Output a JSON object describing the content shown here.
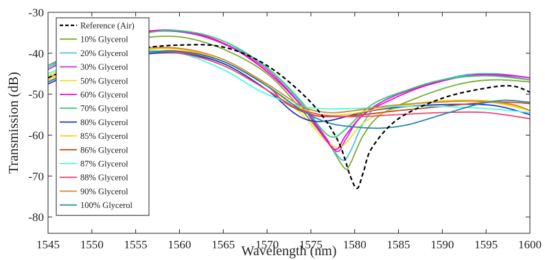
{
  "chart_data": {
    "type": "line",
    "title": "",
    "xlabel": "Wavelength (nm)",
    "ylabel": "Transmission (dB)",
    "xlim": [
      1545,
      1600
    ],
    "ylim": [
      -84,
      -30
    ],
    "xticks": [
      1545,
      1550,
      1555,
      1560,
      1565,
      1570,
      1575,
      1580,
      1585,
      1590,
      1595,
      1600
    ],
    "yticks": [
      -30,
      -40,
      -50,
      -60,
      -70,
      -80
    ],
    "grid": false,
    "legend_position": "top-left",
    "series": [
      {
        "name": "Reference (Air)",
        "color": "#000000",
        "dashed": true,
        "points": [
          [
            1545,
            -46
          ],
          [
            1550,
            -41.5
          ],
          [
            1555,
            -39
          ],
          [
            1560,
            -38
          ],
          [
            1565,
            -38.5
          ],
          [
            1570,
            -43
          ],
          [
            1575,
            -52
          ],
          [
            1578,
            -61
          ],
          [
            1579.5,
            -70
          ],
          [
            1580.3,
            -73
          ],
          [
            1581,
            -69
          ],
          [
            1582,
            -63
          ],
          [
            1585,
            -56
          ],
          [
            1590,
            -51
          ],
          [
            1595,
            -48.5
          ],
          [
            1598,
            -48
          ],
          [
            1600,
            -49.5
          ]
        ]
      },
      {
        "name": "10% Glycerol",
        "color": "#77AC30",
        "points": [
          [
            1545,
            -43
          ],
          [
            1550,
            -39
          ],
          [
            1555,
            -36.5
          ],
          [
            1560,
            -36
          ],
          [
            1565,
            -39
          ],
          [
            1570,
            -45
          ],
          [
            1574,
            -54
          ],
          [
            1577,
            -62
          ],
          [
            1578.8,
            -68
          ],
          [
            1579.5,
            -67
          ],
          [
            1581,
            -60
          ],
          [
            1583,
            -55
          ],
          [
            1587,
            -51
          ],
          [
            1592,
            -47.5
          ],
          [
            1596,
            -46.5
          ],
          [
            1600,
            -47
          ]
        ]
      },
      {
        "name": "20% Glycerol",
        "color": "#4DBEEE",
        "points": [
          [
            1545,
            -43.5
          ],
          [
            1550,
            -38.5
          ],
          [
            1555,
            -35.2
          ],
          [
            1560,
            -34.8
          ],
          [
            1565,
            -37.5
          ],
          [
            1570,
            -43.5
          ],
          [
            1574,
            -52.5
          ],
          [
            1576.5,
            -60
          ],
          [
            1578.5,
            -66
          ],
          [
            1579.5,
            -64
          ],
          [
            1581,
            -57
          ],
          [
            1583,
            -52
          ],
          [
            1587,
            -48.5
          ],
          [
            1592,
            -45.5
          ],
          [
            1596,
            -45
          ],
          [
            1600,
            -46
          ]
        ]
      },
      {
        "name": "30% Glycerol",
        "color": "#CC33CC",
        "points": [
          [
            1545,
            -44
          ],
          [
            1550,
            -38.5
          ],
          [
            1555,
            -35.2
          ],
          [
            1560,
            -34.7
          ],
          [
            1565,
            -37.7
          ],
          [
            1570,
            -44
          ],
          [
            1574,
            -53
          ],
          [
            1576.5,
            -60
          ],
          [
            1578,
            -64
          ],
          [
            1579,
            -61
          ],
          [
            1580.5,
            -56
          ],
          [
            1583,
            -52
          ],
          [
            1587,
            -48.5
          ],
          [
            1592,
            -45.8
          ],
          [
            1596,
            -45.3
          ],
          [
            1600,
            -46.5
          ]
        ]
      },
      {
        "name": "50% Glycerol",
        "color": "#E6E633",
        "points": [
          [
            1545,
            -45.5
          ],
          [
            1550,
            -41
          ],
          [
            1555,
            -39
          ],
          [
            1560,
            -39
          ],
          [
            1565,
            -42
          ],
          [
            1570,
            -48
          ],
          [
            1574,
            -55
          ],
          [
            1576.5,
            -61
          ],
          [
            1578,
            -63
          ],
          [
            1579,
            -62
          ],
          [
            1581,
            -57
          ],
          [
            1584,
            -54
          ],
          [
            1588,
            -52
          ],
          [
            1593,
            -51.5
          ],
          [
            1597,
            -52.5
          ],
          [
            1600,
            -54
          ]
        ]
      },
      {
        "name": "60% Glycerol",
        "color": "#FF00CC",
        "points": [
          [
            1545,
            -43
          ],
          [
            1550,
            -38
          ],
          [
            1555,
            -35
          ],
          [
            1560,
            -34.5
          ],
          [
            1565,
            -37.5
          ],
          [
            1570,
            -44.5
          ],
          [
            1574,
            -53
          ],
          [
            1576,
            -59
          ],
          [
            1577.8,
            -63.5
          ],
          [
            1579,
            -60
          ],
          [
            1581,
            -55
          ],
          [
            1584,
            -51.5
          ],
          [
            1588,
            -48
          ],
          [
            1593,
            -45.5
          ],
          [
            1597,
            -45.3
          ],
          [
            1600,
            -46
          ]
        ]
      },
      {
        "name": "70% Glycerol",
        "color": "#33CC77",
        "points": [
          [
            1545,
            -43
          ],
          [
            1550,
            -38.5
          ],
          [
            1555,
            -35.5
          ],
          [
            1560,
            -34.5
          ],
          [
            1565,
            -37
          ],
          [
            1570,
            -43.5
          ],
          [
            1574,
            -52
          ],
          [
            1576,
            -58
          ],
          [
            1577.5,
            -60.5
          ],
          [
            1579,
            -58.5
          ],
          [
            1582,
            -52.5
          ],
          [
            1586,
            -49
          ],
          [
            1590,
            -46.5
          ],
          [
            1595,
            -45.5
          ],
          [
            1600,
            -46.5
          ]
        ]
      },
      {
        "name": "80% Glycerol",
        "color": "#2233CC",
        "points": [
          [
            1545,
            -47.5
          ],
          [
            1550,
            -43
          ],
          [
            1555,
            -40.5
          ],
          [
            1560,
            -40
          ],
          [
            1565,
            -42.5
          ],
          [
            1570,
            -49
          ],
          [
            1573,
            -54.5
          ],
          [
            1575,
            -56.5
          ],
          [
            1577,
            -56.5
          ],
          [
            1579,
            -55.5
          ],
          [
            1582,
            -54
          ],
          [
            1586,
            -53
          ],
          [
            1591,
            -52.5
          ],
          [
            1596,
            -52.8
          ],
          [
            1600,
            -55
          ]
        ]
      },
      {
        "name": "85% Glycerol",
        "color": "#FFCC00",
        "points": [
          [
            1545,
            -46.5
          ],
          [
            1550,
            -42
          ],
          [
            1555,
            -39.5
          ],
          [
            1560,
            -39
          ],
          [
            1565,
            -42
          ],
          [
            1570,
            -48
          ],
          [
            1573,
            -52.5
          ],
          [
            1576,
            -55
          ],
          [
            1579,
            -55
          ],
          [
            1583,
            -53.5
          ],
          [
            1588,
            -52
          ],
          [
            1594,
            -51.5
          ],
          [
            1597,
            -52.3
          ],
          [
            1600,
            -54
          ]
        ]
      },
      {
        "name": "86% Glycerol",
        "color": "#CC4422",
        "points": [
          [
            1545,
            -47
          ],
          [
            1550,
            -42.5
          ],
          [
            1555,
            -40
          ],
          [
            1560,
            -39.5
          ],
          [
            1565,
            -42
          ],
          [
            1570,
            -48
          ],
          [
            1572,
            -52
          ],
          [
            1575,
            -55
          ],
          [
            1578,
            -55.5
          ],
          [
            1581,
            -55
          ],
          [
            1585,
            -54
          ],
          [
            1590,
            -53
          ],
          [
            1595,
            -52
          ],
          [
            1598,
            -52
          ],
          [
            1600,
            -52.3
          ]
        ]
      },
      {
        "name": "87% Glycerol",
        "color": "#44FFDD",
        "points": [
          [
            1545,
            -45
          ],
          [
            1550,
            -41
          ],
          [
            1555,
            -39.5
          ],
          [
            1560,
            -40
          ],
          [
            1565,
            -44
          ],
          [
            1569,
            -49
          ],
          [
            1573,
            -52.5
          ],
          [
            1576,
            -53.5
          ],
          [
            1580,
            -53.5
          ],
          [
            1585,
            -53
          ],
          [
            1590,
            -53
          ],
          [
            1595,
            -53.5
          ],
          [
            1600,
            -54.5
          ]
        ]
      },
      {
        "name": "88% Glycerol",
        "color": "#EE4477",
        "points": [
          [
            1545,
            -47
          ],
          [
            1550,
            -42.5
          ],
          [
            1555,
            -40
          ],
          [
            1560,
            -40
          ],
          [
            1565,
            -43
          ],
          [
            1570,
            -49
          ],
          [
            1573,
            -53
          ],
          [
            1576,
            -55
          ],
          [
            1580,
            -55.5
          ],
          [
            1585,
            -55
          ],
          [
            1590,
            -54.5
          ],
          [
            1595,
            -54.5
          ],
          [
            1600,
            -56
          ]
        ]
      },
      {
        "name": "90% Glycerol",
        "color": "#CC8833",
        "points": [
          [
            1545,
            -46
          ],
          [
            1550,
            -41.5
          ],
          [
            1555,
            -39
          ],
          [
            1560,
            -38.8
          ],
          [
            1565,
            -41.5
          ],
          [
            1570,
            -47.5
          ],
          [
            1574,
            -53
          ],
          [
            1577,
            -54.5
          ],
          [
            1580,
            -54
          ],
          [
            1584,
            -52.8
          ],
          [
            1589,
            -52
          ],
          [
            1594,
            -51.7
          ],
          [
            1598,
            -52.5
          ],
          [
            1600,
            -54
          ]
        ]
      },
      {
        "name": "100% Glycerol",
        "color": "#2288AA",
        "points": [
          [
            1545,
            -47
          ],
          [
            1550,
            -42.5
          ],
          [
            1555,
            -40
          ],
          [
            1560,
            -39.7
          ],
          [
            1565,
            -42
          ],
          [
            1570,
            -48
          ],
          [
            1574,
            -54
          ],
          [
            1577,
            -57
          ],
          [
            1580,
            -58
          ],
          [
            1583,
            -58.3
          ],
          [
            1586,
            -57.5
          ],
          [
            1590,
            -55
          ],
          [
            1594,
            -52.5
          ],
          [
            1597,
            -51.5
          ],
          [
            1600,
            -52
          ]
        ]
      }
    ]
  }
}
